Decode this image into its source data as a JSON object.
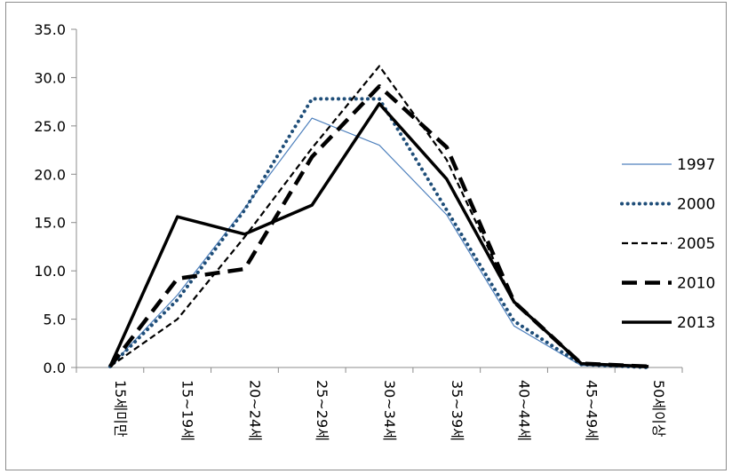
{
  "chart_data": {
    "type": "line",
    "title": "",
    "xlabel": "",
    "ylabel": "",
    "ylim": [
      0,
      35
    ],
    "yticks": [
      "0.0",
      "5.0",
      "10.0",
      "15.0",
      "20.0",
      "25.0",
      "30.0",
      "35.0"
    ],
    "categories": [
      "15세미만",
      "15~19세",
      "20~24세",
      "25~29세",
      "30~34세",
      "35~39세",
      "40~44세",
      "45~49세",
      "50세이상"
    ],
    "grid": false,
    "legend_position": "right",
    "series": [
      {
        "name": "1997",
        "values": [
          0.1,
          7.5,
          16.5,
          25.8,
          23.0,
          15.8,
          4.3,
          0.2,
          0.0
        ],
        "style": "thin",
        "color": "#4f81bd"
      },
      {
        "name": "2000",
        "values": [
          0.1,
          7.0,
          16.3,
          27.8,
          27.8,
          16.3,
          4.8,
          0.3,
          0.0
        ],
        "style": "dotted",
        "color": "#1f4e79"
      },
      {
        "name": "2005",
        "values": [
          0.1,
          5.0,
          13.5,
          22.7,
          31.2,
          21.5,
          6.7,
          0.4,
          0.1
        ],
        "style": "dashed",
        "color": "#000000"
      },
      {
        "name": "2010",
        "values": [
          0.1,
          9.2,
          10.2,
          21.8,
          29.1,
          22.8,
          6.8,
          0.4,
          0.1
        ],
        "style": "longdash",
        "color": "#000000"
      },
      {
        "name": "2013",
        "values": [
          0.1,
          15.6,
          13.8,
          16.8,
          27.3,
          19.5,
          6.8,
          0.4,
          0.1
        ],
        "style": "thick",
        "color": "#000000"
      }
    ]
  }
}
